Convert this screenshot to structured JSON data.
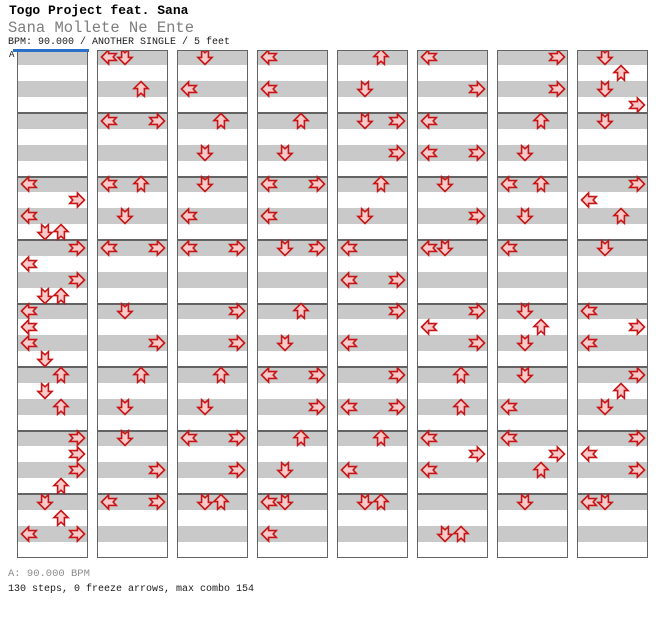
{
  "header": {
    "artist": "Togo Project feat. Sana",
    "title": "Sana Mollete Ne Ente",
    "info": "BPM: 90.000 / ANOTHER SINGLE / 5 feet"
  },
  "chart": {
    "section_label": "A",
    "lanes": [
      "left",
      "down",
      "up",
      "right"
    ],
    "beats_per_measure": 4,
    "colors": {
      "band_gray": "#c9c9c9",
      "band_white": "#ffffff",
      "border": "#636363",
      "section_line": "#2a6fc8",
      "arrow_fill": "#f8caca",
      "arrow_stroke": "#c81414"
    },
    "notes": [
      [
        [],
        [],
        [
          {
            "beat": 0,
            "arrows": [
              "left"
            ]
          },
          {
            "beat": 1,
            "arrows": [
              "right"
            ]
          },
          {
            "beat": 2,
            "arrows": [
              "left"
            ]
          },
          {
            "beat": 3,
            "arrows": [
              "down",
              "up"
            ]
          }
        ],
        [
          {
            "beat": 0,
            "arrows": [
              "right"
            ]
          },
          {
            "beat": 1,
            "arrows": [
              "left"
            ]
          },
          {
            "beat": 2,
            "arrows": [
              "right"
            ]
          },
          {
            "beat": 3,
            "arrows": [
              "down",
              "up"
            ]
          }
        ],
        [
          {
            "beat": 0,
            "arrows": [
              "left"
            ]
          },
          {
            "beat": 1,
            "arrows": [
              "left"
            ]
          },
          {
            "beat": 2,
            "arrows": [
              "left"
            ]
          },
          {
            "beat": 3,
            "arrows": [
              "down"
            ]
          }
        ],
        [
          {
            "beat": 0,
            "arrows": [
              "up"
            ]
          },
          {
            "beat": 1,
            "arrows": [
              "down"
            ]
          },
          {
            "beat": 2,
            "arrows": [
              "up"
            ]
          }
        ],
        [
          {
            "beat": 0,
            "arrows": [
              "right"
            ]
          },
          {
            "beat": 1,
            "arrows": [
              "right"
            ]
          },
          {
            "beat": 2,
            "arrows": [
              "right"
            ]
          },
          {
            "beat": 3,
            "arrows": [
              "up"
            ]
          }
        ],
        [
          {
            "beat": 0,
            "arrows": [
              "down"
            ]
          },
          {
            "beat": 1,
            "arrows": [
              "up"
            ]
          },
          {
            "beat": 2,
            "arrows": [
              "left",
              "right"
            ]
          }
        ]
      ],
      [
        [
          {
            "beat": 0,
            "arrows": [
              "left",
              "down"
            ]
          },
          {
            "beat": 2,
            "arrows": [
              "up"
            ]
          }
        ],
        [
          {
            "beat": 0,
            "arrows": [
              "left",
              "right"
            ]
          }
        ],
        [
          {
            "beat": 0,
            "arrows": [
              "left",
              "up"
            ]
          },
          {
            "beat": 2,
            "arrows": [
              "down"
            ]
          }
        ],
        [
          {
            "beat": 0,
            "arrows": [
              "left",
              "right"
            ]
          }
        ],
        [
          {
            "beat": 0,
            "arrows": [
              "down"
            ]
          },
          {
            "beat": 2,
            "arrows": [
              "right"
            ]
          }
        ],
        [
          {
            "beat": 0,
            "arrows": [
              "up"
            ]
          },
          {
            "beat": 2,
            "arrows": [
              "down"
            ]
          }
        ],
        [
          {
            "beat": 0,
            "arrows": [
              "down"
            ]
          },
          {
            "beat": 2,
            "arrows": [
              "right"
            ]
          }
        ],
        [
          {
            "beat": 0,
            "arrows": [
              "left",
              "right"
            ]
          }
        ]
      ],
      [
        [
          {
            "beat": 0,
            "arrows": [
              "down"
            ]
          },
          {
            "beat": 2,
            "arrows": [
              "left"
            ]
          }
        ],
        [
          {
            "beat": 0,
            "arrows": [
              "up"
            ]
          },
          {
            "beat": 2,
            "arrows": [
              "down"
            ]
          }
        ],
        [
          {
            "beat": 0,
            "arrows": [
              "down"
            ]
          },
          {
            "beat": 2,
            "arrows": [
              "left"
            ]
          }
        ],
        [
          {
            "beat": 0,
            "arrows": [
              "left",
              "right"
            ]
          }
        ],
        [
          {
            "beat": 0,
            "arrows": [
              "right"
            ]
          },
          {
            "beat": 2,
            "arrows": [
              "right"
            ]
          }
        ],
        [
          {
            "beat": 0,
            "arrows": [
              "up"
            ]
          },
          {
            "beat": 2,
            "arrows": [
              "down"
            ]
          }
        ],
        [
          {
            "beat": 0,
            "arrows": [
              "left",
              "right"
            ]
          },
          {
            "beat": 2,
            "arrows": [
              "right"
            ]
          }
        ],
        [
          {
            "beat": 0,
            "arrows": [
              "down",
              "up"
            ]
          }
        ]
      ],
      [
        [
          {
            "beat": 0,
            "arrows": [
              "left"
            ]
          },
          {
            "beat": 2,
            "arrows": [
              "left"
            ]
          }
        ],
        [
          {
            "beat": 0,
            "arrows": [
              "up"
            ]
          },
          {
            "beat": 2,
            "arrows": [
              "down"
            ]
          }
        ],
        [
          {
            "beat": 0,
            "arrows": [
              "left",
              "right"
            ]
          },
          {
            "beat": 2,
            "arrows": [
              "left"
            ]
          }
        ],
        [
          {
            "beat": 0,
            "arrows": [
              "down",
              "right"
            ]
          }
        ],
        [
          {
            "beat": 0,
            "arrows": [
              "up"
            ]
          },
          {
            "beat": 2,
            "arrows": [
              "down"
            ]
          }
        ],
        [
          {
            "beat": 0,
            "arrows": [
              "left",
              "right"
            ]
          },
          {
            "beat": 2,
            "arrows": [
              "right"
            ]
          }
        ],
        [
          {
            "beat": 0,
            "arrows": [
              "up"
            ]
          },
          {
            "beat": 2,
            "arrows": [
              "down"
            ]
          }
        ],
        [
          {
            "beat": 0,
            "arrows": [
              "left",
              "down"
            ]
          },
          {
            "beat": 2,
            "arrows": [
              "left"
            ]
          }
        ]
      ],
      [
        [
          {
            "beat": 0,
            "arrows": [
              "up"
            ]
          },
          {
            "beat": 2,
            "arrows": [
              "down"
            ]
          }
        ],
        [
          {
            "beat": 0,
            "arrows": [
              "down",
              "right"
            ]
          },
          {
            "beat": 2,
            "arrows": [
              "right"
            ]
          }
        ],
        [
          {
            "beat": 0,
            "arrows": [
              "up"
            ]
          },
          {
            "beat": 2,
            "arrows": [
              "down"
            ]
          }
        ],
        [
          {
            "beat": 0,
            "arrows": [
              "left"
            ]
          },
          {
            "beat": 2,
            "arrows": [
              "left",
              "right"
            ]
          }
        ],
        [
          {
            "beat": 0,
            "arrows": [
              "right"
            ]
          },
          {
            "beat": 2,
            "arrows": [
              "left"
            ]
          }
        ],
        [
          {
            "beat": 0,
            "arrows": [
              "right"
            ]
          },
          {
            "beat": 2,
            "arrows": [
              "left",
              "right"
            ]
          }
        ],
        [
          {
            "beat": 0,
            "arrows": [
              "up"
            ]
          },
          {
            "beat": 2,
            "arrows": [
              "left"
            ]
          }
        ],
        [
          {
            "beat": 0,
            "arrows": [
              "down",
              "up"
            ]
          }
        ]
      ],
      [
        [
          {
            "beat": 0,
            "arrows": [
              "left"
            ]
          },
          {
            "beat": 2,
            "arrows": [
              "right"
            ]
          }
        ],
        [
          {
            "beat": 0,
            "arrows": [
              "left"
            ]
          },
          {
            "beat": 2,
            "arrows": [
              "left",
              "right"
            ]
          }
        ],
        [
          {
            "beat": 0,
            "arrows": [
              "down"
            ]
          },
          {
            "beat": 2,
            "arrows": [
              "right"
            ]
          }
        ],
        [
          {
            "beat": 0,
            "arrows": [
              "left",
              "down"
            ]
          }
        ],
        [
          {
            "beat": 0,
            "arrows": [
              "right"
            ]
          },
          {
            "beat": 1,
            "arrows": [
              "left"
            ]
          },
          {
            "beat": 2,
            "arrows": [
              "right"
            ]
          }
        ],
        [
          {
            "beat": 0,
            "arrows": [
              "up"
            ]
          },
          {
            "beat": 2,
            "arrows": [
              "up"
            ]
          }
        ],
        [
          {
            "beat": 0,
            "arrows": [
              "left"
            ]
          },
          {
            "beat": 1,
            "arrows": [
              "right"
            ]
          },
          {
            "beat": 2,
            "arrows": [
              "left"
            ]
          }
        ],
        [
          {
            "beat": 2,
            "arrows": [
              "down",
              "up"
            ]
          }
        ]
      ],
      [
        [
          {
            "beat": 0,
            "arrows": [
              "right"
            ]
          },
          {
            "beat": 2,
            "arrows": [
              "right"
            ]
          }
        ],
        [
          {
            "beat": 0,
            "arrows": [
              "up"
            ]
          },
          {
            "beat": 2,
            "arrows": [
              "down"
            ]
          }
        ],
        [
          {
            "beat": 0,
            "arrows": [
              "left",
              "up"
            ]
          },
          {
            "beat": 2,
            "arrows": [
              "down"
            ]
          }
        ],
        [
          {
            "beat": 0,
            "arrows": [
              "left"
            ]
          }
        ],
        [
          {
            "beat": 0,
            "arrows": [
              "down"
            ]
          },
          {
            "beat": 1,
            "arrows": [
              "up"
            ]
          },
          {
            "beat": 2,
            "arrows": [
              "down"
            ]
          }
        ],
        [
          {
            "beat": 0,
            "arrows": [
              "down"
            ]
          },
          {
            "beat": 2,
            "arrows": [
              "left"
            ]
          }
        ],
        [
          {
            "beat": 0,
            "arrows": [
              "left"
            ]
          },
          {
            "beat": 1,
            "arrows": [
              "right"
            ]
          },
          {
            "beat": 2,
            "arrows": [
              "up"
            ]
          }
        ],
        [
          {
            "beat": 0,
            "arrows": [
              "down"
            ]
          }
        ]
      ],
      [
        [
          {
            "beat": 0,
            "arrows": [
              "down"
            ]
          },
          {
            "beat": 1,
            "arrows": [
              "up"
            ]
          },
          {
            "beat": 2,
            "arrows": [
              "down"
            ]
          },
          {
            "beat": 3,
            "arrows": [
              "right"
            ]
          }
        ],
        [
          {
            "beat": 0,
            "arrows": [
              "down"
            ]
          }
        ],
        [
          {
            "beat": 0,
            "arrows": [
              "right"
            ]
          },
          {
            "beat": 1,
            "arrows": [
              "left"
            ]
          },
          {
            "beat": 2,
            "arrows": [
              "up"
            ]
          }
        ],
        [
          {
            "beat": 0,
            "arrows": [
              "down"
            ]
          }
        ],
        [
          {
            "beat": 0,
            "arrows": [
              "left"
            ]
          },
          {
            "beat": 1,
            "arrows": [
              "right"
            ]
          },
          {
            "beat": 2,
            "arrows": [
              "left"
            ]
          }
        ],
        [
          {
            "beat": 0,
            "arrows": [
              "right"
            ]
          },
          {
            "beat": 1,
            "arrows": [
              "up"
            ]
          },
          {
            "beat": 2,
            "arrows": [
              "down"
            ]
          }
        ],
        [
          {
            "beat": 0,
            "arrows": [
              "right"
            ]
          },
          {
            "beat": 1,
            "arrows": [
              "left"
            ]
          },
          {
            "beat": 2,
            "arrows": [
              "right"
            ]
          }
        ],
        [
          {
            "beat": 0,
            "arrows": [
              "left",
              "down"
            ]
          }
        ]
      ]
    ]
  },
  "footer": {
    "bpm_label": "A: 90.000 BPM",
    "summary": "130 steps, 0 freeze arrows, max combo 154"
  }
}
